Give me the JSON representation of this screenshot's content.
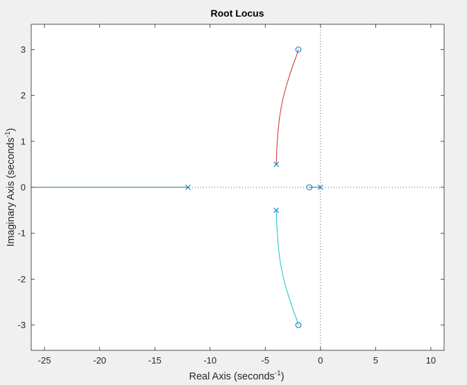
{
  "chart_data": {
    "type": "line",
    "title": "Root Locus",
    "xlabel": {
      "text": "Real Axis (seconds",
      "sup": "-1",
      "close": ")"
    },
    "ylabel": {
      "text": "Imaginary Axis (seconds",
      "sup": "-1",
      "close": ")"
    },
    "xlim": [
      -26.2,
      11.2
    ],
    "ylim": [
      -3.55,
      3.55
    ],
    "xticks": [
      -25,
      -20,
      -15,
      -10,
      -5,
      0,
      5,
      10
    ],
    "yticks": [
      -3,
      -2,
      -1,
      0,
      1,
      2,
      3
    ],
    "xtick_labels": [
      "-25",
      "-20",
      "-15",
      "-10",
      "-5",
      "0",
      "5",
      "10"
    ],
    "ytick_labels": [
      "-3",
      "-2",
      "-1",
      "0",
      "1",
      "2",
      "3"
    ],
    "grid": false,
    "reference_lines": {
      "real_axis_zero": true,
      "imag_axis_zero": true
    },
    "poles": [
      {
        "re": -4,
        "im": 0.5
      },
      {
        "re": -4,
        "im": -0.5
      },
      {
        "re": -12,
        "im": 0
      },
      {
        "re": 0,
        "im": 0
      }
    ],
    "zeros": [
      {
        "re": -2,
        "im": 3
      },
      {
        "re": -2,
        "im": -3
      },
      {
        "re": -1,
        "im": 0
      }
    ],
    "series": [
      {
        "color": "#d62728",
        "x": [
          -4.0,
          -3.95,
          -3.85,
          -3.72,
          -3.55,
          -3.35,
          -3.1,
          -2.85,
          -2.6,
          -2.35,
          -2.15,
          -2.0
        ],
        "y": [
          0.5,
          0.85,
          1.2,
          1.5,
          1.75,
          1.98,
          2.2,
          2.4,
          2.58,
          2.75,
          2.88,
          3.0
        ]
      },
      {
        "color": "#17becf",
        "x": [
          -4.0,
          -3.95,
          -3.85,
          -3.72,
          -3.55,
          -3.35,
          -3.1,
          -2.85,
          -2.6,
          -2.35,
          -2.15,
          -2.0
        ],
        "y": [
          -0.5,
          -0.85,
          -1.2,
          -1.5,
          -1.75,
          -1.98,
          -2.2,
          -2.4,
          -2.58,
          -2.75,
          -2.88,
          -3.0
        ]
      },
      {
        "color": "#1f7a1f",
        "x": [
          -12,
          -26.2
        ],
        "y": [
          0,
          0
        ]
      },
      {
        "color": "#0072bd",
        "x": [
          0,
          -1
        ],
        "y": [
          0,
          0
        ]
      }
    ],
    "marker_color": "#0072bd"
  }
}
